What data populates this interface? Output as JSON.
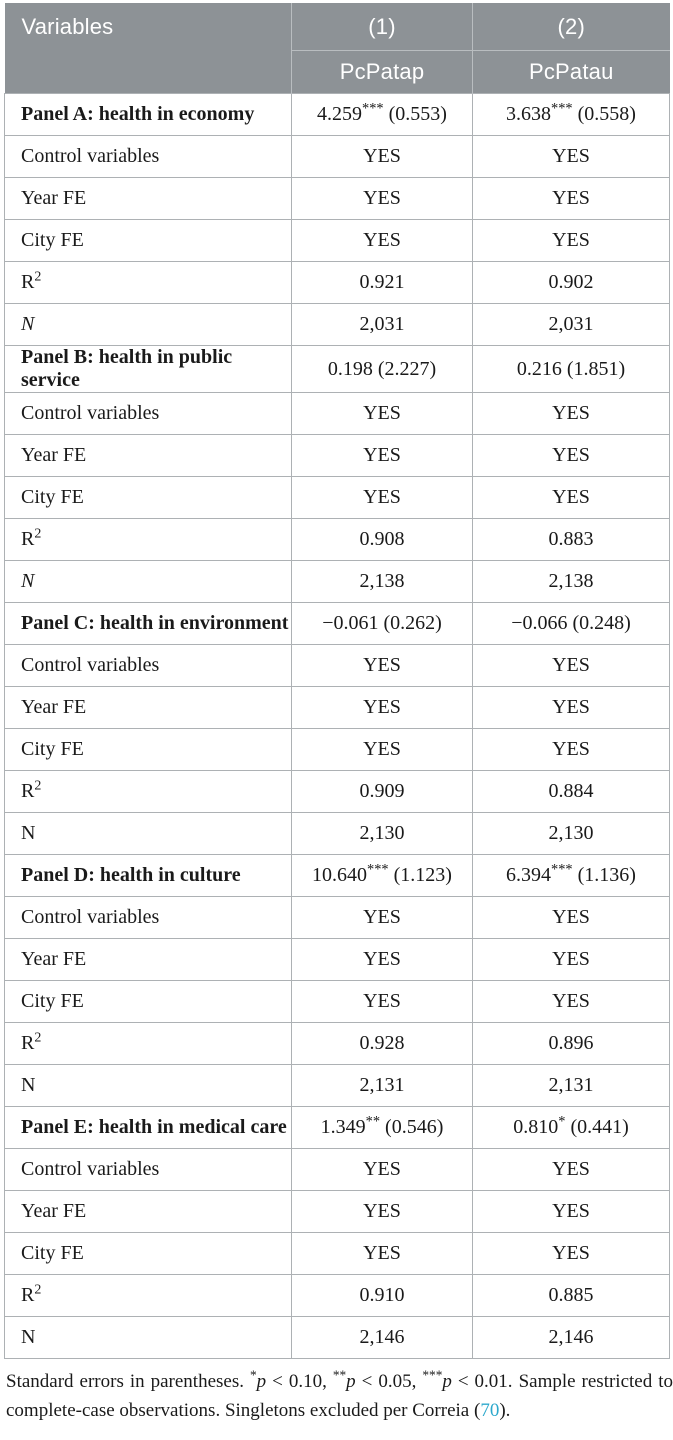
{
  "table": {
    "header": {
      "variables": "Variables",
      "col1": "(1)",
      "col2": "(2)",
      "col1_var": "PcPatap",
      "col2_var": "PcPatau"
    },
    "row_labels": {
      "control": "Control variables",
      "year": "Year FE",
      "city": "City FE",
      "r2_base": "R",
      "r2_sup": "2",
      "n": "N"
    },
    "panels": [
      {
        "label": "Panel A: health in economy",
        "est1": "4.259",
        "stars1": "***",
        "se1": " (0.553)",
        "est2": "3.638",
        "stars2": "***",
        "se2": " (0.558)",
        "control1": "YES",
        "control2": "YES",
        "year1": "YES",
        "year2": "YES",
        "city1": "YES",
        "city2": "YES",
        "r2_1": "0.921",
        "r2_2": "0.902",
        "n1": "2,031",
        "n2": "2,031",
        "n_italic": true
      },
      {
        "label": "Panel B: health in public service",
        "est1": "0.198",
        "stars1": "",
        "se1": " (2.227)",
        "est2": "0.216",
        "stars2": "",
        "se2": " (1.851)",
        "control1": "YES",
        "control2": "YES",
        "year1": "YES",
        "year2": "YES",
        "city1": "YES",
        "city2": "YES",
        "r2_1": "0.908",
        "r2_2": "0.883",
        "n1": "2,138",
        "n2": "2,138",
        "n_italic": true
      },
      {
        "label": "Panel C: health in environment",
        "est1": "−0.061",
        "stars1": "",
        "se1": " (0.262)",
        "est2": "−0.066",
        "stars2": "",
        "se2": " (0.248)",
        "control1": "YES",
        "control2": "YES",
        "year1": "YES",
        "year2": "YES",
        "city1": "YES",
        "city2": "YES",
        "r2_1": "0.909",
        "r2_2": "0.884",
        "n1": "2,130",
        "n2": "2,130",
        "n_italic": false
      },
      {
        "label": "Panel D: health in culture",
        "est1": "10.640",
        "stars1": "***",
        "se1": " (1.123)",
        "est2": "6.394",
        "stars2": "***",
        "se2": " (1.136)",
        "control1": "YES",
        "control2": "YES",
        "year1": "YES",
        "year2": "YES",
        "city1": "YES",
        "city2": "YES",
        "r2_1": "0.928",
        "r2_2": "0.896",
        "n1": "2,131",
        "n2": "2,131",
        "n_italic": false
      },
      {
        "label": "Panel E: health in medical care",
        "est1": "1.349",
        "stars1": "**",
        "se1": " (0.546)",
        "est2": "0.810",
        "stars2": "*",
        "se2": " (0.441)",
        "control1": "YES",
        "control2": "YES",
        "year1": "YES",
        "year2": "YES",
        "city1": "YES",
        "city2": "YES",
        "r2_1": "0.910",
        "r2_2": "0.885",
        "n1": "2,146",
        "n2": "2,146",
        "n_italic": false
      }
    ]
  },
  "footnote": {
    "lead": "Standard errors in parentheses. ",
    "sig1_stars": "*",
    "sig1_p": "p",
    "sig1_rel": " < 0.10, ",
    "sig2_stars": "**",
    "sig2_p": "p",
    "sig2_rel": " < 0.05, ",
    "sig3_stars": "***",
    "sig3_p": "p",
    "sig3_rel": " < 0.01. ",
    "tail1": "Sample restricted to complete-case observations. Singletons excluded per Correia (",
    "link": "70",
    "tail2": ")."
  },
  "colors": {
    "header_bg": "#8D9296",
    "header_text": "#FFFFFF",
    "border": "#ADB1B4",
    "body_text": "#1A1A1A",
    "citation_link": "#2CA8CC"
  }
}
